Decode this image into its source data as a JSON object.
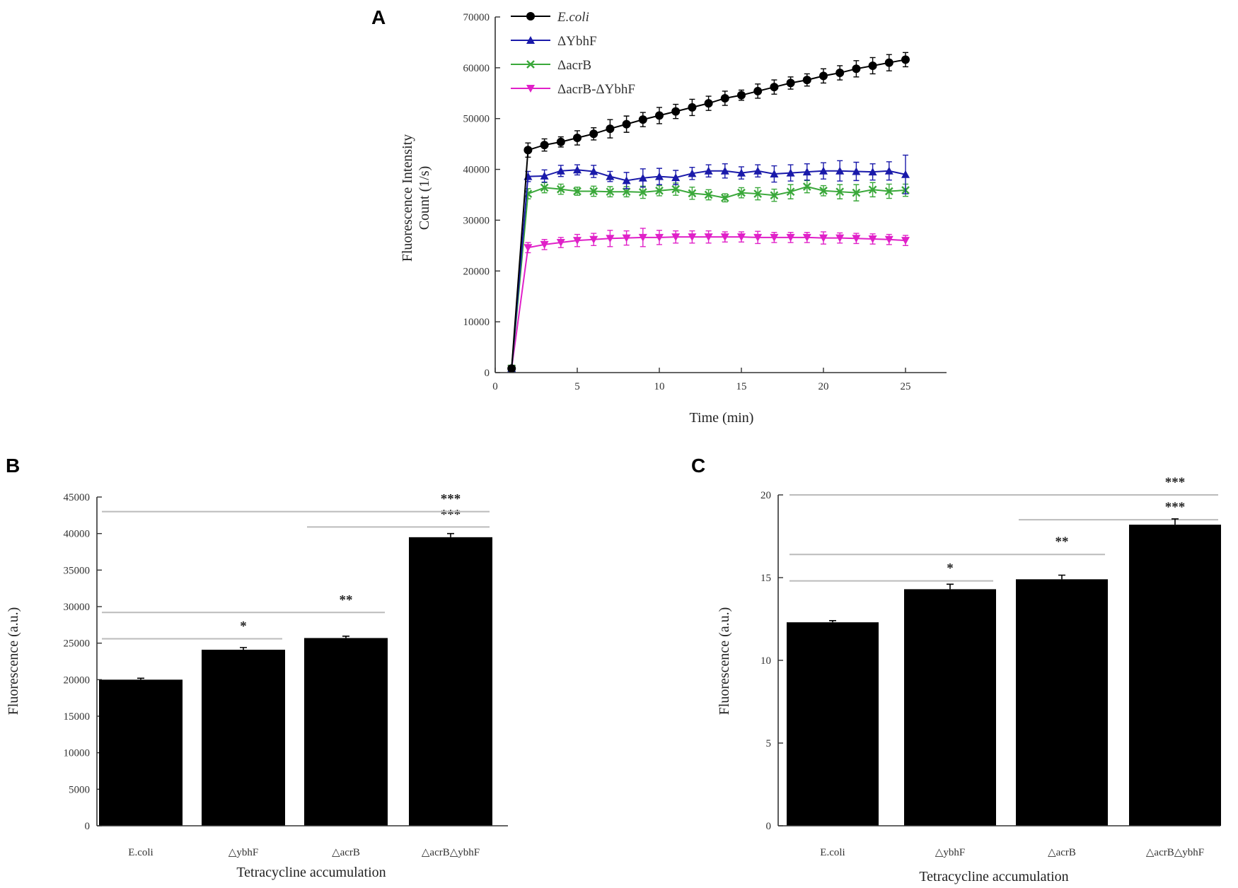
{
  "chart_data": [
    {
      "panel": "A",
      "type": "line",
      "xlabel": "Time (min)",
      "ylabel": [
        "Fluorescence Intensity",
        "Count (1/s)"
      ],
      "xlim": [
        0,
        27.5
      ],
      "ylim": [
        0,
        70000
      ],
      "xticks": [
        0,
        5,
        10,
        15,
        20,
        25
      ],
      "yticks": [
        0,
        10000,
        20000,
        30000,
        40000,
        50000,
        60000,
        70000
      ],
      "x": [
        1,
        2,
        3,
        4,
        5,
        6,
        7,
        8,
        9,
        10,
        11,
        12,
        13,
        14,
        15,
        16,
        17,
        18,
        19,
        20,
        21,
        22,
        23,
        24,
        25
      ],
      "series": [
        {
          "name": "E.coli",
          "italic": true,
          "color": "#000000",
          "marker": "circle",
          "values": [
            800,
            43800,
            44800,
            45400,
            46200,
            47000,
            48000,
            48900,
            49800,
            50600,
            51400,
            52200,
            53000,
            54000,
            54600,
            55400,
            56200,
            57000,
            57600,
            58400,
            59000,
            59800,
            60400,
            61000,
            61600
          ],
          "errors": [
            300,
            1400,
            1200,
            1000,
            1400,
            1200,
            1800,
            1600,
            1400,
            1600,
            1400,
            1600,
            1400,
            1400,
            1000,
            1400,
            1400,
            1200,
            1200,
            1400,
            1400,
            1600,
            1600,
            1600,
            1400
          ]
        },
        {
          "name": "ΔYbhF",
          "italic": false,
          "color": "#1a1aaa",
          "marker": "triangle",
          "values": [
            800,
            38600,
            38700,
            39700,
            39900,
            39600,
            38600,
            37800,
            38300,
            38600,
            38400,
            39200,
            39700,
            39700,
            39300,
            39700,
            39100,
            39300,
            39500,
            39700,
            39700,
            39600,
            39500,
            39700,
            39000
          ],
          "errors": [
            300,
            1000,
            1200,
            1100,
            1000,
            1200,
            1000,
            1600,
            1800,
            1600,
            1400,
            1200,
            1200,
            1400,
            1200,
            1200,
            1600,
            1600,
            1600,
            1600,
            2000,
            1800,
            1600,
            1800,
            3800
          ]
        },
        {
          "name": "ΔacrB",
          "italic": false,
          "color": "#3aa83a",
          "marker": "x",
          "values": [
            800,
            35200,
            36400,
            36100,
            35700,
            35700,
            35600,
            35600,
            35500,
            35800,
            36100,
            35300,
            35000,
            34400,
            35400,
            35200,
            34900,
            35600,
            36600,
            35800,
            35600,
            35400,
            36000,
            35700,
            35900
          ],
          "errors": [
            300,
            1000,
            1000,
            1000,
            800,
            1000,
            1000,
            1000,
            1200,
            1000,
            1200,
            1200,
            1000,
            800,
            1000,
            1200,
            1200,
            1400,
            1200,
            1000,
            1400,
            1600,
            1400,
            1400,
            1200
          ]
        },
        {
          "name": "ΔacrB-ΔYbhF",
          "italic": false,
          "color": "#e020c8",
          "marker": "triangle-down",
          "values": [
            800,
            24600,
            25200,
            25600,
            26000,
            26200,
            26400,
            26500,
            26600,
            26600,
            26700,
            26700,
            26700,
            26700,
            26700,
            26600,
            26600,
            26600,
            26600,
            26500,
            26500,
            26400,
            26300,
            26200,
            26000
          ],
          "errors": [
            300,
            1000,
            1000,
            1000,
            1200,
            1200,
            1600,
            1400,
            1800,
            1400,
            1200,
            1200,
            1200,
            1000,
            1000,
            1200,
            1000,
            1000,
            1000,
            1200,
            1000,
            1000,
            1000,
            1000,
            1000
          ]
        }
      ]
    },
    {
      "panel": "B",
      "type": "bar",
      "xlabel": "Tetracycline accumulation",
      "ylabel": "Fluorescence (a.u.)",
      "ylim": [
        0,
        45000
      ],
      "yticks": [
        0,
        5000,
        10000,
        15000,
        20000,
        25000,
        30000,
        35000,
        40000,
        45000
      ],
      "categories": [
        "E.coli",
        "△ybhF",
        "△acrB",
        "△acrB△ybhF"
      ],
      "values": [
        20000,
        24100,
        25700,
        39500
      ],
      "errors": [
        200,
        300,
        250,
        500
      ],
      "significance": [
        {
          "from": 0,
          "to": 1,
          "y": 25600,
          "label": "*"
        },
        {
          "from": 0,
          "to": 2,
          "y": 29200,
          "label": "**"
        },
        {
          "from": 2,
          "to": 3,
          "y": 40900,
          "label": "***"
        },
        {
          "from": 0,
          "to": 3,
          "y": 43000,
          "label": "***"
        }
      ]
    },
    {
      "panel": "C",
      "type": "bar",
      "xlabel": "Tetracycline accumulation",
      "ylabel": "Fluorescence (a.u.)",
      "ylim": [
        0,
        20
      ],
      "yticks": [
        0,
        5,
        10,
        15,
        20
      ],
      "categories": [
        "E.coli",
        "△ybhF",
        "△acrB",
        "△acrB△ybhF"
      ],
      "values": [
        12.3,
        14.3,
        14.9,
        18.2
      ],
      "errors": [
        0.1,
        0.3,
        0.25,
        0.35
      ],
      "significance": [
        {
          "from": 0,
          "to": 1,
          "y": 14.8,
          "label": "*"
        },
        {
          "from": 0,
          "to": 2,
          "y": 16.4,
          "label": "**"
        },
        {
          "from": 2,
          "to": 3,
          "y": 18.5,
          "label": "***"
        },
        {
          "from": 0,
          "to": 3,
          "y": 20.0,
          "label": "***"
        }
      ]
    }
  ]
}
